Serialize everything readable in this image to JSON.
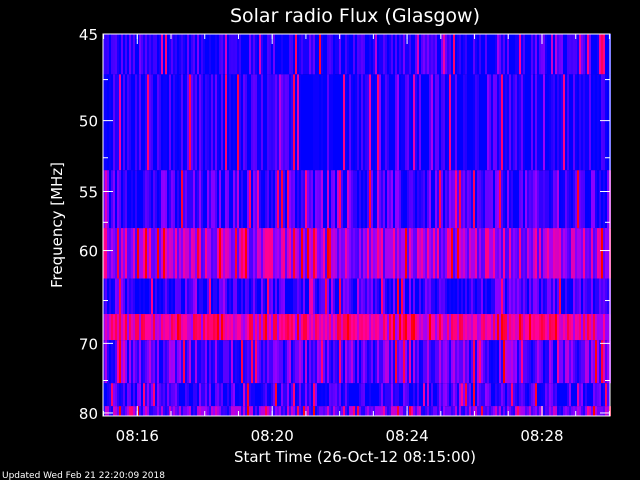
{
  "colors": {
    "background": "#000000",
    "text": "#ffffff",
    "low": "#0000ff",
    "high": "#ff0000"
  },
  "chart_data": {
    "type": "heatmap",
    "title": "Solar radio Flux (Glasgow)",
    "xlabel": "Start Time (26-Oct-12 08:15:00)",
    "ylabel": "Frequency [MHz]",
    "x_range": [
      "08:14:59",
      "08:30:01"
    ],
    "x_ticks": [
      "08:16",
      "08:20",
      "08:24",
      "08:28"
    ],
    "y_range": [
      45,
      80.5
    ],
    "y_ticks": [
      45,
      50,
      55,
      60,
      70,
      80
    ],
    "y_scale": "reciprocal",
    "colormap": [
      "#0000ff",
      "#ff0000"
    ],
    "bands": [
      {
        "from_mhz": 45.0,
        "to_mhz": 47.2,
        "intensity": 0.06
      },
      {
        "from_mhz": 47.2,
        "to_mhz": 53.4,
        "intensity": 0.03
      },
      {
        "from_mhz": 53.4,
        "to_mhz": 58.0,
        "intensity": 0.12
      },
      {
        "from_mhz": 58.0,
        "to_mhz": 62.7,
        "intensity": 0.42
      },
      {
        "from_mhz": 62.7,
        "to_mhz": 66.5,
        "intensity": 0.1
      },
      {
        "from_mhz": 66.5,
        "to_mhz": 69.6,
        "intensity": 0.62
      },
      {
        "from_mhz": 69.6,
        "to_mhz": 75.4,
        "intensity": 0.22
      },
      {
        "from_mhz": 75.4,
        "to_mhz": 78.9,
        "intensity": 0.12
      },
      {
        "from_mhz": 78.9,
        "to_mhz": 80.5,
        "intensity": 0.28
      }
    ]
  },
  "footer": "Updated Wed Feb 21 22:20:09 2018"
}
